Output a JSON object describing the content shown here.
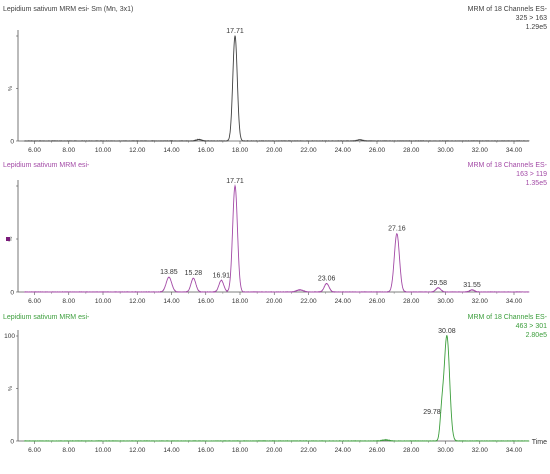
{
  "chart_data": [
    {
      "type": "line",
      "title_left": "Lepidium sativum MRM esi- Sm (Mn, 3x1)",
      "header_right": [
        "MRM of 18 Channels ES-",
        "325 > 163",
        "1.29e5"
      ],
      "color": "#404040",
      "marker": false,
      "xlim": [
        5.0,
        35.0
      ],
      "xticks": [
        "6.00",
        "8.00",
        "10.00",
        "12.00",
        "14.00",
        "16.00",
        "18.00",
        "20.00",
        "22.00",
        "24.00",
        "26.00",
        "28.00",
        "30.00",
        "32.00",
        "34.00"
      ],
      "ytick_labels": [
        "0",
        "%",
        ""
      ],
      "xlabel": "",
      "peaks": [
        {
          "rt": 17.71,
          "height": 100,
          "width": 0.13,
          "label": "17.71"
        },
        {
          "rt": 15.6,
          "height": 1.5,
          "width": 0.15,
          "label": ""
        },
        {
          "rt": 25.0,
          "height": 1.2,
          "width": 0.15,
          "label": ""
        }
      ]
    },
    {
      "type": "line",
      "title_left": "Lepidium sativum MRM esi-",
      "header_right": [
        "MRM of 18 Channels ES-",
        "163 > 119",
        "1.35e5"
      ],
      "color": "#a34aa6",
      "marker": true,
      "xlim": [
        5.0,
        35.0
      ],
      "xticks": [
        "6.00",
        "8.00",
        "10.00",
        "12.00",
        "14.00",
        "16.00",
        "18.00",
        "20.00",
        "22.00",
        "24.00",
        "26.00",
        "28.00",
        "30.00",
        "32.00",
        "34.00"
      ],
      "ytick_labels": [
        "0",
        "%",
        ""
      ],
      "xlabel": "",
      "peaks": [
        {
          "rt": 13.85,
          "height": 14,
          "width": 0.16,
          "label": "13.85"
        },
        {
          "rt": 15.28,
          "height": 13,
          "width": 0.14,
          "label": "15.28"
        },
        {
          "rt": 16.91,
          "height": 11,
          "width": 0.14,
          "label": "16.91"
        },
        {
          "rt": 17.71,
          "height": 100,
          "width": 0.14,
          "label": "17.71"
        },
        {
          "rt": 21.5,
          "height": 2,
          "width": 0.2,
          "label": ""
        },
        {
          "rt": 23.06,
          "height": 8,
          "width": 0.14,
          "label": "23.06"
        },
        {
          "rt": 27.16,
          "height": 55,
          "width": 0.15,
          "label": "27.16"
        },
        {
          "rt": 29.58,
          "height": 4,
          "width": 0.14,
          "label": "29.58"
        },
        {
          "rt": 31.55,
          "height": 2,
          "width": 0.14,
          "label": "31.55"
        }
      ]
    },
    {
      "type": "line",
      "title_left": "Lepidium sativum MRM esi-",
      "header_right": [
        "MRM of 18 Channels ES-",
        "463 > 301",
        "2.80e5"
      ],
      "color": "#3c9e3c",
      "marker": false,
      "xlim": [
        5.0,
        35.0
      ],
      "xticks": [
        "6.00",
        "8.00",
        "10.00",
        "12.00",
        "14.00",
        "16.00",
        "18.00",
        "20.00",
        "22.00",
        "24.00",
        "26.00",
        "28.00",
        "30.00",
        "32.00",
        "34.00"
      ],
      "ytick_labels": [
        "0",
        "%",
        "100"
      ],
      "xlabel": "Time",
      "peaks": [
        {
          "rt": 30.08,
          "height": 100,
          "width": 0.16,
          "label": "30.08"
        },
        {
          "rt": 29.78,
          "height": 23,
          "width": 0.1,
          "label": "29.78"
        },
        {
          "rt": 26.5,
          "height": 1,
          "width": 0.2,
          "label": ""
        }
      ]
    }
  ]
}
